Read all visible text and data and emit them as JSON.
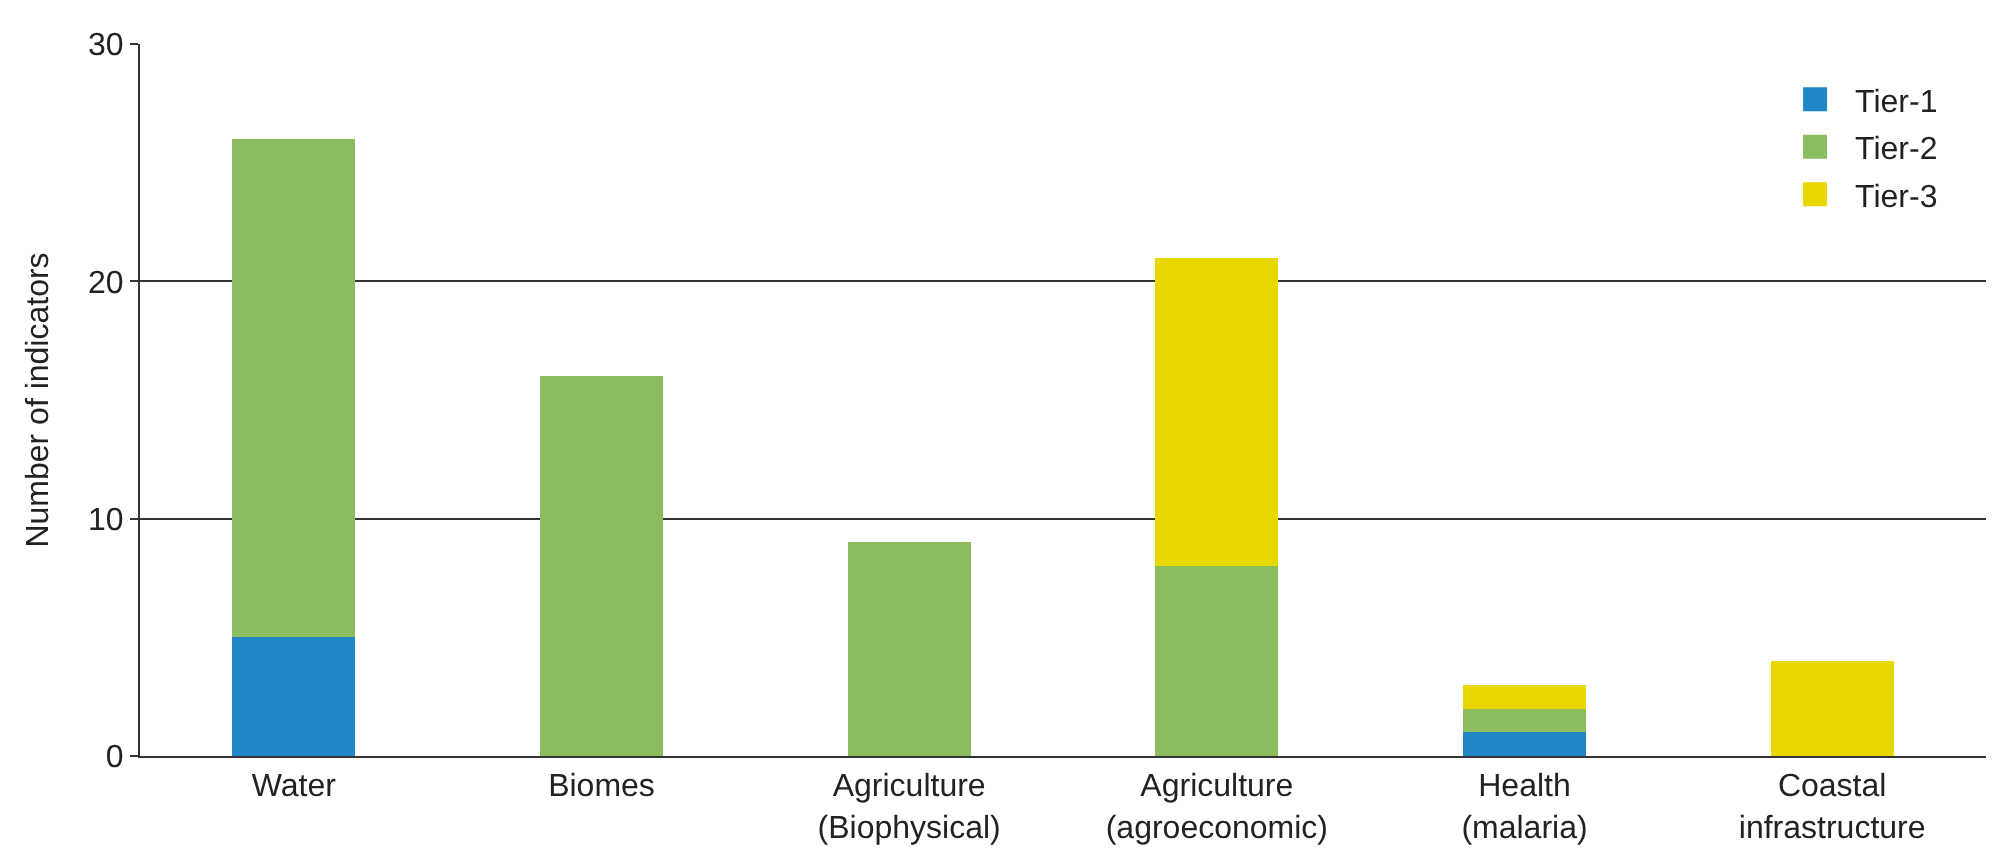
{
  "chart_data": {
    "type": "bar",
    "stacked": true,
    "ylabel": "Number of indicators",
    "categories": [
      "Water",
      "Biomes",
      "Agriculture\n(Biophysical)",
      "Agriculture\n(agroeconomic)",
      "Health\n(malaria)",
      "Coastal\ninfrastructure"
    ],
    "series": [
      {
        "name": "Tier-1",
        "color": "#1f87c5",
        "values": [
          5,
          0,
          0,
          0,
          1,
          0
        ]
      },
      {
        "name": "Tier-2",
        "color": "#8bbd5f",
        "values": [
          21,
          16,
          9,
          8,
          1,
          0
        ]
      },
      {
        "name": "Tier-3",
        "color": "#e8d800",
        "values": [
          0,
          0,
          0,
          13,
          1,
          4
        ]
      }
    ],
    "ylim": [
      0,
      30
    ],
    "yticks": [
      0,
      10,
      20,
      30
    ],
    "grid": "y",
    "legend": "top right"
  }
}
